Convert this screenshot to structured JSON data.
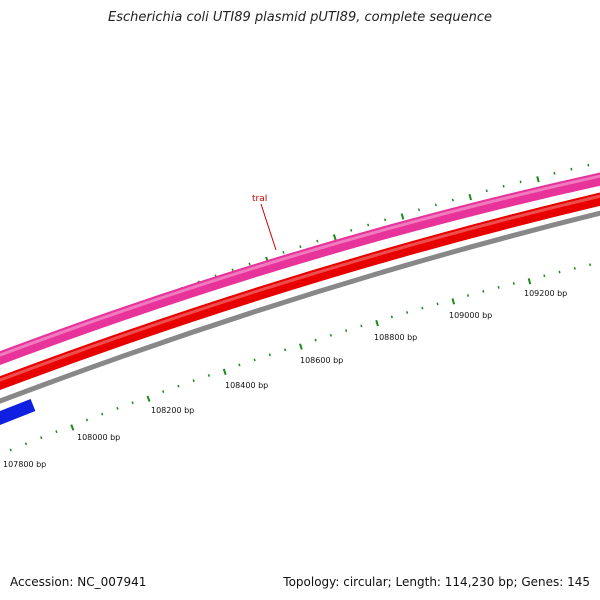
{
  "title": "Escherichia coli UTI89 plasmid pUTI89, complete sequence",
  "accession": "Accession: NC_007941",
  "summary": "Topology: circular; Length: 114,230 bp; Genes: 145",
  "colors": {
    "pink_track": "#e8339a",
    "red_track": "#e80000",
    "gray_track": "#888888",
    "blue_feature": "#1020e0",
    "tick": "#1a8a1a",
    "label": "#cc0000"
  },
  "gene_label": "traI",
  "scale_labels": [
    {
      "bp": 107800,
      "text": "107800 bp"
    },
    {
      "bp": 108000,
      "text": "108000 bp"
    },
    {
      "bp": 108200,
      "text": "108200 bp"
    },
    {
      "bp": 108400,
      "text": "108400 bp"
    },
    {
      "bp": 108600,
      "text": "108600 bp"
    },
    {
      "bp": 108800,
      "text": "108800 bp"
    },
    {
      "bp": 109000,
      "text": "109000 bp"
    },
    {
      "bp": 109200,
      "text": "109200 bp"
    }
  ]
}
